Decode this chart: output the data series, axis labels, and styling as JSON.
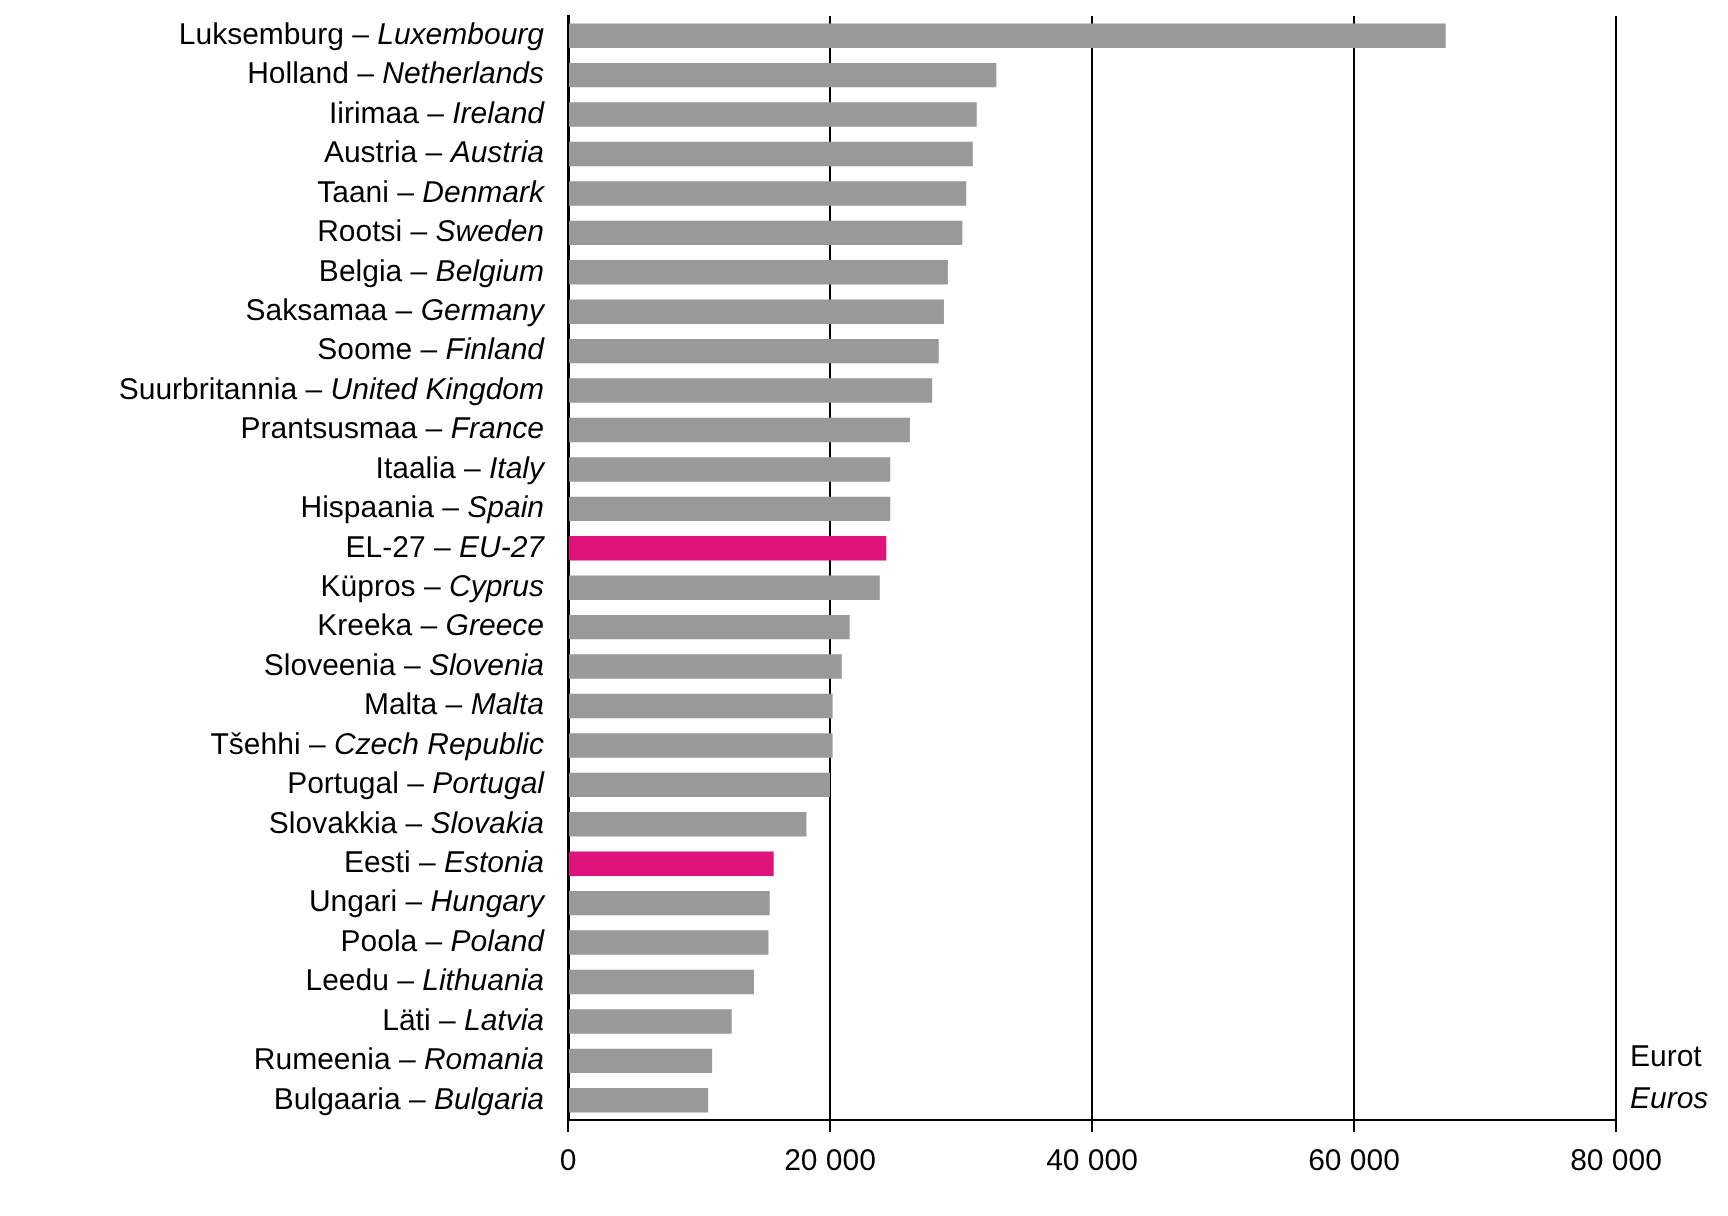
{
  "chart_data": {
    "type": "bar",
    "orientation": "horizontal",
    "xlabel": "Eurot\nEuros",
    "categories": [
      "Luksemburg – Luxembourg",
      "Holland – Netherlands",
      "Iirimaa – Ireland",
      "Austria – Austria",
      "Taani – Denmark",
      "Rootsi – Sweden",
      "Belgia – Belgium",
      "Saksamaa – Germany",
      "Soome – Finland",
      "Suurbritannia – United Kingdom",
      "Prantsusmaa – France",
      "Itaalia – Italy",
      "Hispaania – Spain",
      "EL-27 – EU-27",
      "Küpros – Cyprus",
      "Kreeka – Greece",
      "Sloveenia – Slovenia",
      "Malta – Malta",
      "Tšehhi – Czech Republic",
      "Portugal – Portugal",
      "Slovakkia – Slovakia",
      "Eesti – Estonia",
      "Ungari – Hungary",
      "Poola – Poland",
      "Leedu – Lithuania",
      "Läti – Latvia",
      "Rumeenia – Romania",
      "Bulgaaria – Bulgaria"
    ],
    "values": [
      67000,
      32700,
      31200,
      30900,
      30400,
      30100,
      29000,
      28700,
      28300,
      27800,
      26100,
      24600,
      24600,
      24300,
      23800,
      21500,
      20900,
      20200,
      20200,
      20000,
      18200,
      15700,
      15400,
      15300,
      14200,
      12500,
      11000,
      10700
    ],
    "colors": [
      "#999999",
      "#999999",
      "#999999",
      "#999999",
      "#999999",
      "#999999",
      "#999999",
      "#999999",
      "#999999",
      "#999999",
      "#999999",
      "#999999",
      "#999999",
      "#e0137c",
      "#999999",
      "#999999",
      "#999999",
      "#999999",
      "#999999",
      "#999999",
      "#999999",
      "#e0137c",
      "#999999",
      "#999999",
      "#999999",
      "#999999",
      "#999999",
      "#999999"
    ],
    "xlim": [
      0,
      80000
    ],
    "xticks": [
      0,
      {
        "value": 20000,
        "label": "20 000"
      },
      {
        "value": 40000,
        "label": "40 000"
      },
      {
        "value": 60000,
        "label": "60 000"
      },
      {
        "value": 80000,
        "label": "80 000"
      }
    ],
    "grid": "x"
  }
}
